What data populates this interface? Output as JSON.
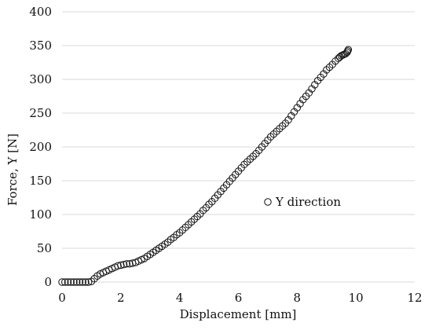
{
  "chart_data": {
    "type": "scatter",
    "xlabel": "Displacement [mm]",
    "ylabel": "Force, Y [N]",
    "xlim": [
      0,
      12
    ],
    "ylim": [
      0,
      400
    ],
    "x_ticks": [
      "0",
      "2",
      "4",
      "6",
      "8",
      "10",
      "12"
    ],
    "y_ticks": [
      "0",
      "50",
      "100",
      "150",
      "200",
      "250",
      "300",
      "350",
      "400"
    ],
    "grid": "horizontal",
    "legend_position": "right-middle",
    "marker_color": "#111111",
    "series": [
      {
        "name": "Y direction",
        "marker": "open-circle",
        "x": [
          0.0,
          0.1,
          0.2,
          0.3,
          0.4,
          0.5,
          0.6,
          0.7,
          0.8,
          0.9,
          1.0,
          1.1,
          1.2,
          1.3,
          1.4,
          1.5,
          1.6,
          1.7,
          1.8,
          1.9,
          2.0,
          2.1,
          2.2,
          2.3,
          2.4,
          2.5,
          2.6,
          2.7,
          2.8,
          2.9,
          3.0,
          3.1,
          3.2,
          3.3,
          3.4,
          3.5,
          3.6,
          3.7,
          3.8,
          3.9,
          4.0,
          4.1,
          4.2,
          4.3,
          4.4,
          4.5,
          4.6,
          4.7,
          4.8,
          4.9,
          5.0,
          5.1,
          5.2,
          5.3,
          5.4,
          5.5,
          5.6,
          5.7,
          5.8,
          5.9,
          6.0,
          6.1,
          6.2,
          6.3,
          6.4,
          6.5,
          6.6,
          6.7,
          6.8,
          6.9,
          7.0,
          7.1,
          7.2,
          7.3,
          7.4,
          7.5,
          7.6,
          7.7,
          7.8,
          7.9,
          8.0,
          8.1,
          8.2,
          8.3,
          8.4,
          8.5,
          8.6,
          8.7,
          8.8,
          8.9,
          9.0,
          9.1,
          9.2,
          9.3,
          9.4,
          9.45,
          9.5,
          9.55,
          9.6,
          9.65,
          9.7,
          9.72,
          9.74
        ],
        "y": [
          0,
          0,
          0,
          0,
          0,
          0,
          0,
          0,
          0,
          0,
          1,
          5,
          9,
          12,
          14,
          16,
          18,
          20,
          22,
          24,
          25,
          26,
          27,
          27,
          28,
          29,
          31,
          33,
          35,
          38,
          41,
          44,
          47,
          50,
          53,
          56,
          59,
          63,
          66,
          70,
          73,
          77,
          81,
          85,
          89,
          93,
          97,
          101,
          106,
          110,
          115,
          119,
          124,
          129,
          134,
          139,
          144,
          149,
          154,
          159,
          164,
          169,
          174,
          178,
          182,
          186,
          190,
          195,
          200,
          205,
          210,
          215,
          219,
          223,
          227,
          231,
          235,
          240,
          246,
          252,
          258,
          264,
          270,
          275,
          280,
          286,
          292,
          298,
          303,
          308,
          314,
          318,
          322,
          327,
          331,
          333,
          335,
          336,
          337,
          338,
          340,
          342,
          344
        ]
      }
    ]
  }
}
